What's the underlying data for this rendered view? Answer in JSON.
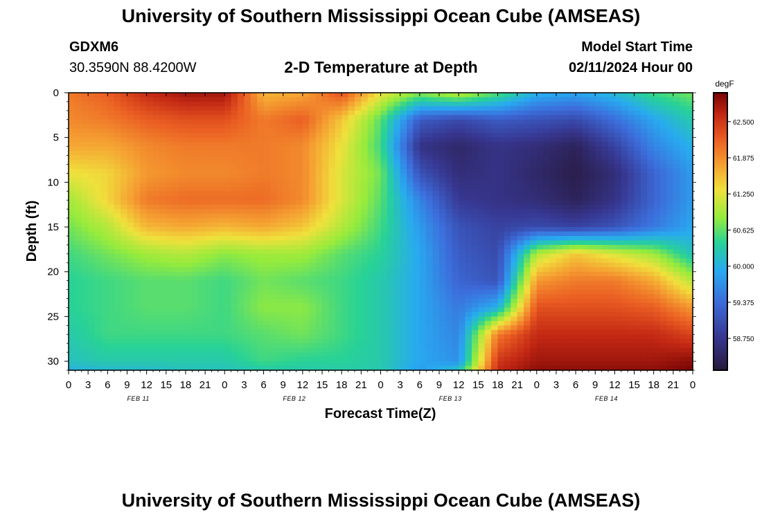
{
  "page": {
    "title": "University of Southern Mississippi Ocean Cube (AMSEAS)",
    "station_id": "GDXM6",
    "coordinates": "30.3590N  88.4200W",
    "subtitle": "2-D Temperature at Depth",
    "model_label": "Model Start Time",
    "model_time": "02/11/2024 Hour 00",
    "footer_title": "University of Southern Mississippi Ocean Cube (AMSEAS)"
  },
  "chart_data": {
    "type": "heatmap",
    "title": "2-D Temperature at Depth",
    "xlabel": "Forecast Time(Z)",
    "ylabel": "Depth (ft)",
    "x_range_hours": [
      0,
      96
    ],
    "y_range_ft": [
      0,
      31
    ],
    "y_reversed": true,
    "x_tick_labels": [
      "0",
      "3",
      "6",
      "9",
      "12",
      "15",
      "18",
      "21",
      "0",
      "3",
      "6",
      "9",
      "12",
      "15",
      "18",
      "21",
      "0",
      "3",
      "6",
      "9",
      "12",
      "15",
      "18",
      "21",
      "0",
      "3",
      "6",
      "9",
      "12",
      "15",
      "18",
      "21",
      "0"
    ],
    "day_labels": [
      "FEB 11",
      "FEB 12",
      "FEB 13",
      "FEB 14"
    ],
    "y_ticks": [
      0,
      5,
      10,
      15,
      20,
      25,
      30
    ],
    "colorbar": {
      "unit": "degF",
      "range": [
        58.2,
        63.0
      ],
      "tick_values": [
        62.5,
        61.875,
        61.25,
        60.625,
        60.0,
        59.375,
        58.75
      ],
      "tick_labels": [
        "62.500",
        "61.875",
        "61.250",
        "60.625",
        "60.000",
        "59.375",
        "58.750"
      ]
    },
    "hours": [
      0,
      6,
      12,
      18,
      24,
      30,
      36,
      42,
      48,
      54,
      60,
      66,
      72,
      78,
      84,
      90,
      96
    ],
    "depths": [
      0,
      3,
      6,
      9,
      12,
      15,
      18,
      21,
      24,
      27,
      30,
      31
    ],
    "temperature": [
      [
        62.0,
        62.2,
        62.6,
        62.8,
        62.8,
        61.6,
        61.7,
        62.3,
        61.3,
        60.8,
        61.1,
        60.6,
        60.0,
        59.9,
        60.1,
        60.5,
        60.7
      ],
      [
        61.9,
        62.0,
        62.2,
        62.3,
        62.3,
        62.0,
        62.2,
        61.5,
        60.6,
        59.2,
        59.0,
        59.2,
        59.1,
        59.0,
        59.4,
        59.9,
        60.3
      ],
      [
        61.7,
        61.7,
        61.9,
        62.0,
        62.0,
        62.0,
        61.9,
        61.3,
        60.5,
        58.7,
        58.5,
        58.7,
        58.6,
        58.4,
        58.9,
        59.6,
        60.0
      ],
      [
        61.3,
        61.4,
        61.8,
        61.9,
        61.9,
        62.0,
        61.9,
        61.2,
        60.7,
        59.1,
        58.6,
        58.7,
        58.5,
        58.3,
        58.6,
        59.3,
        59.8
      ],
      [
        60.9,
        61.4,
        62.0,
        62.1,
        62.1,
        62.1,
        61.9,
        61.2,
        60.6,
        59.6,
        58.8,
        58.7,
        58.6,
        58.4,
        58.7,
        59.3,
        59.8
      ],
      [
        60.7,
        61.0,
        61.6,
        61.7,
        61.6,
        61.7,
        61.5,
        61.0,
        60.5,
        59.8,
        59.1,
        58.9,
        59.0,
        58.9,
        59.1,
        59.5,
        59.9
      ],
      [
        60.5,
        60.7,
        60.9,
        61.0,
        60.8,
        60.9,
        60.9,
        60.6,
        60.4,
        59.9,
        59.2,
        59.0,
        61.0,
        61.5,
        61.2,
        60.9,
        60.2
      ],
      [
        60.4,
        60.5,
        60.6,
        60.6,
        60.5,
        60.7,
        60.6,
        60.5,
        60.3,
        59.9,
        59.3,
        59.1,
        61.8,
        62.0,
        62.0,
        61.7,
        61.0
      ],
      [
        60.4,
        60.5,
        60.6,
        60.6,
        60.5,
        60.8,
        60.8,
        60.5,
        60.3,
        59.9,
        59.5,
        60.0,
        62.3,
        62.3,
        62.3,
        62.2,
        61.8
      ],
      [
        60.3,
        60.5,
        60.5,
        60.5,
        60.5,
        60.6,
        60.7,
        60.5,
        60.3,
        59.9,
        59.6,
        62.0,
        62.6,
        62.6,
        62.6,
        62.6,
        62.4
      ],
      [
        60.2,
        60.3,
        60.3,
        60.3,
        60.3,
        60.5,
        60.4,
        60.4,
        60.3,
        59.9,
        59.7,
        62.5,
        62.8,
        62.8,
        62.8,
        62.8,
        62.9
      ],
      [
        60.0,
        60.1,
        60.1,
        60.2,
        60.2,
        60.3,
        60.3,
        60.3,
        60.3,
        59.8,
        60.2,
        62.6,
        62.9,
        62.9,
        62.9,
        62.9,
        63.0
      ]
    ]
  }
}
